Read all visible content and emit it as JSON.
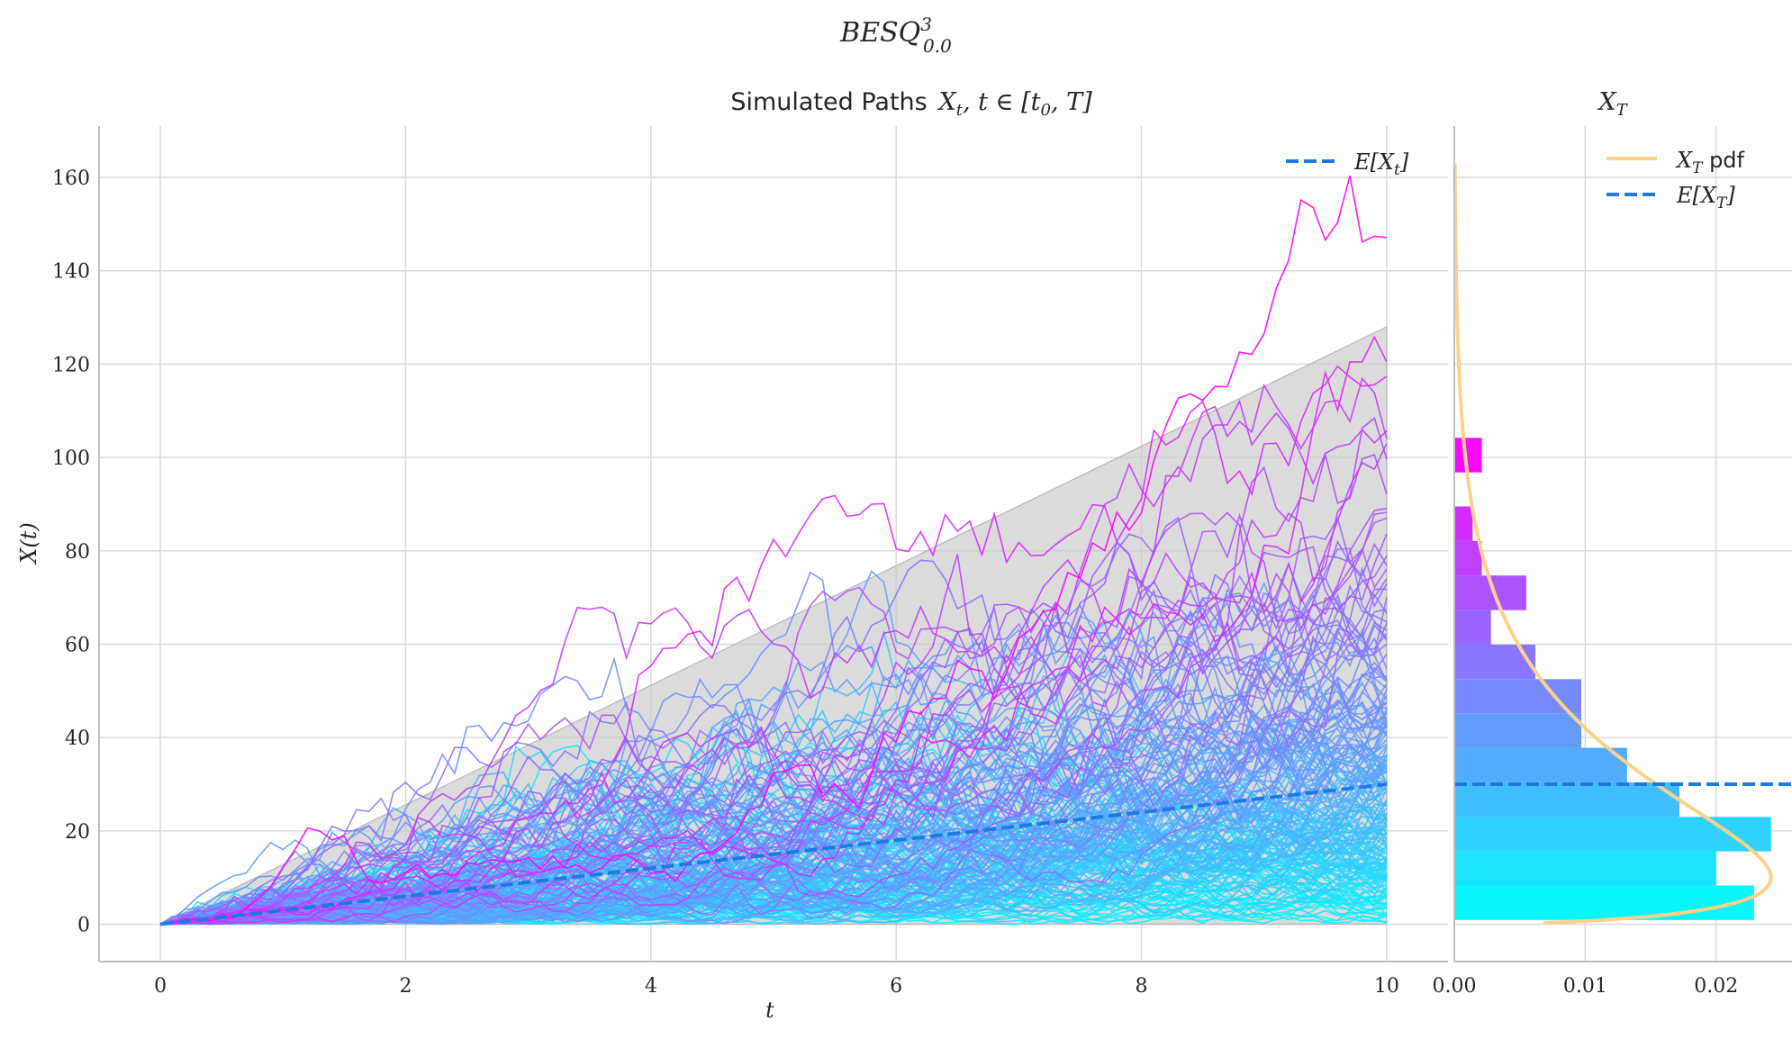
{
  "suptitle": {
    "main": "BESQ",
    "sup": "3",
    "sub": "0.0"
  },
  "colors": {
    "grid": "#d9d9d9",
    "spine": "#bfbfbf",
    "mean": "#1f7ae0",
    "band": "#c8c8c8",
    "pdf": "#ffd08a",
    "cmap_low": "#00ffff",
    "cmap_high": "#ff00ff"
  },
  "chart_data": [
    {
      "type": "line",
      "title_prefix": "Simulated Paths",
      "title_math": "X",
      "title_math_sub": "t",
      "title_math_rest": ", t ∈ [t",
      "title_math_sub2": "0",
      "title_math_end": ", T]",
      "xlabel": "t",
      "ylabel": "X(t)",
      "xlim": [
        -0.5,
        10.5
      ],
      "ylim": [
        -8,
        171
      ],
      "xticks": [
        0,
        2,
        4,
        6,
        8,
        10
      ],
      "yticks": [
        0,
        20,
        40,
        60,
        80,
        100,
        120,
        140,
        160
      ],
      "grid": true,
      "legend_position": "top-right",
      "legend": [
        {
          "label_main": "E[X",
          "label_sub": "t",
          "label_end": "]",
          "style": "dashed"
        }
      ],
      "n_paths": 200,
      "t_start": 0,
      "t_end": 10,
      "mean_line": {
        "x": [
          0,
          10
        ],
        "y": [
          0,
          30
        ]
      },
      "band": {
        "x": [
          0,
          10
        ],
        "upper": [
          0,
          128
        ],
        "lower": [
          0,
          0
        ]
      },
      "highlight_peaks": [
        {
          "t": 5.15,
          "y": 81
        },
        {
          "t": 6.35,
          "y": 86
        },
        {
          "t": 8.85,
          "y": 105
        },
        {
          "t": 10,
          "y": 103
        }
      ]
    },
    {
      "type": "bar",
      "orientation": "horizontal",
      "title_main": "X",
      "title_sub": "T",
      "xlim": [
        0,
        0.0258
      ],
      "xticks": [
        0.0,
        0.01,
        0.02
      ],
      "xtick_labels": [
        "0.00",
        "0.01",
        "0.02"
      ],
      "ylim": [
        -8,
        171
      ],
      "grid": true,
      "legend_position": "top-right",
      "legend": [
        {
          "label_main": "X",
          "label_sub": "T",
          "label_end": " pdf",
          "style": "solid"
        },
        {
          "label_main": "E[X",
          "label_sub": "T",
          "label_end": "]",
          "style": "dashed"
        }
      ],
      "bin_edges": [
        0.9,
        8.3,
        15.6,
        23.0,
        30.4,
        37.8,
        45.2,
        52.5,
        59.9,
        67.3,
        74.7,
        82.1,
        89.5,
        96.8,
        104.2
      ],
      "densities": [
        0.0229,
        0.02,
        0.0242,
        0.0172,
        0.0132,
        0.0097,
        0.0097,
        0.0062,
        0.0028,
        0.0055,
        0.0021,
        0.0014,
        0.0,
        0.0021
      ],
      "mean_value": 30,
      "pdf": {
        "dof": 3,
        "scale": 10
      }
    }
  ]
}
